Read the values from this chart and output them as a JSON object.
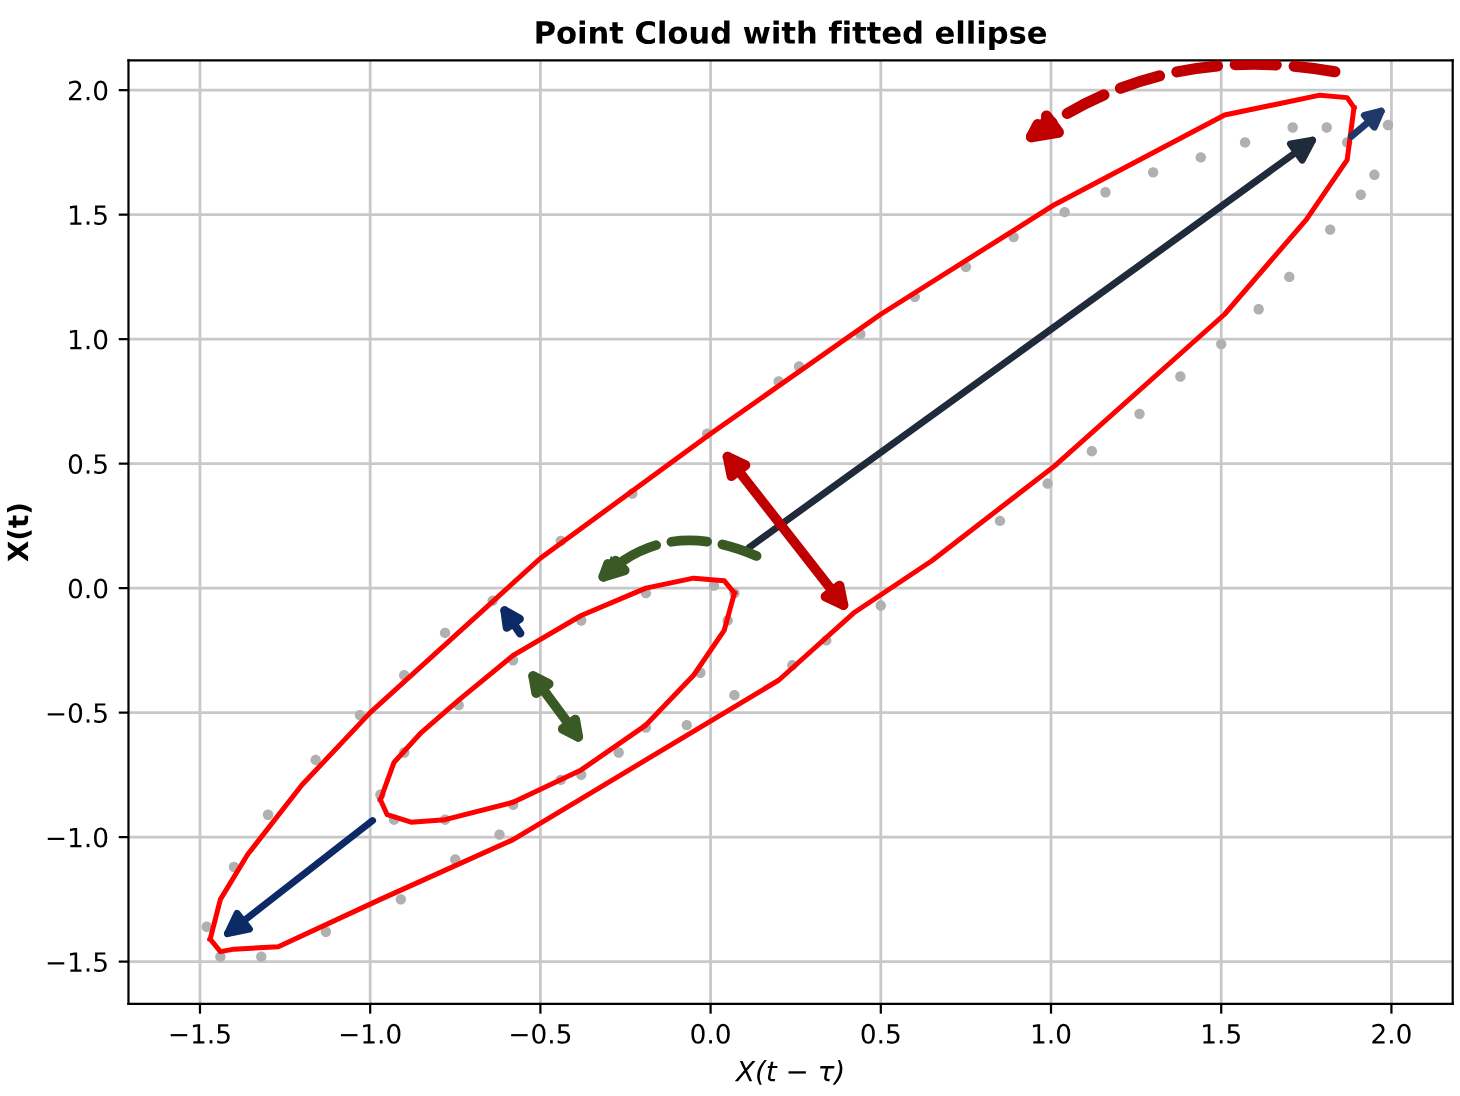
{
  "chart_data": {
    "type": "scatter",
    "title": "Point Cloud with fitted ellipse",
    "xlabel": "X(t − τ)",
    "ylabel": "X(t)",
    "xlim": [
      -1.71,
      2.18
    ],
    "ylim": [
      -1.67,
      2.12
    ],
    "xticks": [
      {
        "value": -1.5,
        "label": "−1.5"
      },
      {
        "value": -1.0,
        "label": "−1.0"
      },
      {
        "value": -0.5,
        "label": "−0.5"
      },
      {
        "value": 0.0,
        "label": "0.0"
      },
      {
        "value": 0.5,
        "label": "0.5"
      },
      {
        "value": 1.0,
        "label": "1.0"
      },
      {
        "value": 1.5,
        "label": "1.5"
      },
      {
        "value": 2.0,
        "label": "2.0"
      }
    ],
    "yticks": [
      {
        "value": -1.5,
        "label": "−1.5"
      },
      {
        "value": -1.0,
        "label": "−1.0"
      },
      {
        "value": -0.5,
        "label": "−0.5"
      },
      {
        "value": 0.0,
        "label": "0.0"
      },
      {
        "value": 0.5,
        "label": "0.5"
      },
      {
        "value": 1.0,
        "label": "1.0"
      },
      {
        "value": 1.5,
        "label": "1.5"
      },
      {
        "value": 2.0,
        "label": "2.0"
      }
    ],
    "grid": true,
    "series": [
      {
        "marker": "circle",
        "color": "#b0b0b0",
        "x": [
          1.99,
          1.95,
          1.91,
          1.82,
          1.7,
          1.61,
          1.5,
          1.38,
          1.26,
          1.12,
          0.99,
          0.85,
          0.5,
          0.34,
          0.24,
          0.07,
          -0.07,
          -0.27,
          -0.44,
          -0.62,
          -0.75,
          -0.91,
          -1.13,
          -1.32,
          -1.44,
          -1.48,
          -1.4,
          -1.3,
          -1.16,
          -1.03,
          -0.9,
          -0.78,
          -0.64,
          -0.44,
          -0.23,
          -0.01,
          0.2,
          0.26,
          0.44,
          0.6,
          0.75,
          0.89,
          1.04,
          1.16,
          1.3,
          1.44,
          1.57,
          1.71,
          1.81,
          1.87,
          0.01,
          -0.19,
          -0.38,
          -0.58,
          -0.74,
          -0.9,
          -0.97,
          -0.93,
          -0.78,
          -0.58,
          -0.38,
          -0.19,
          -0.03,
          0.05,
          0.07
        ],
        "values": [
          1.86,
          1.66,
          1.58,
          1.44,
          1.25,
          1.12,
          0.98,
          0.85,
          0.7,
          0.55,
          0.42,
          0.27,
          -0.07,
          -0.21,
          -0.31,
          -0.43,
          -0.55,
          -0.66,
          -0.77,
          -0.99,
          -1.09,
          -1.25,
          -1.38,
          -1.48,
          -1.48,
          -1.36,
          -1.12,
          -0.91,
          -0.69,
          -0.51,
          -0.35,
          -0.18,
          -0.05,
          0.19,
          0.38,
          0.62,
          0.83,
          0.89,
          1.02,
          1.17,
          1.29,
          1.41,
          1.51,
          1.59,
          1.67,
          1.73,
          1.79,
          1.85,
          1.85,
          1.79,
          0.01,
          -0.02,
          -0.13,
          -0.29,
          -0.47,
          -0.66,
          -0.83,
          -0.93,
          -0.93,
          -0.87,
          -0.75,
          -0.56,
          -0.34,
          -0.13,
          -0.02
        ]
      },
      {
        "type": "line",
        "color": "#ff0000",
        "x": [
          -1.47,
          -1.44,
          -1.36,
          -1.2,
          -1.0,
          -0.5,
          0.0,
          0.5,
          1.01,
          1.51,
          1.79,
          1.87,
          1.89
        ],
        "values": [
          -1.41,
          -1.25,
          -1.07,
          -0.79,
          -0.5,
          0.12,
          0.62,
          1.1,
          1.54,
          1.9,
          1.98,
          1.97,
          1.93
        ]
      },
      {
        "type": "line",
        "color": "#ff0000",
        "x": [
          -1.47,
          -1.44,
          -1.4,
          -1.27,
          -0.97,
          -0.58,
          -0.19,
          0.2,
          0.42,
          0.65,
          1.01,
          1.51,
          1.75,
          1.87,
          1.89
        ],
        "values": [
          -1.41,
          -1.46,
          -1.45,
          -1.44,
          -1.25,
          -1.01,
          -0.69,
          -0.37,
          -0.1,
          0.11,
          0.49,
          1.1,
          1.48,
          1.72,
          1.93
        ]
      },
      {
        "type": "line",
        "color": "#ff0000",
        "x": [
          -0.97,
          -0.93,
          -0.85,
          -0.74,
          -0.58,
          -0.38,
          -0.19,
          -0.05,
          0.04,
          0.07
        ],
        "values": [
          -0.85,
          -0.7,
          -0.58,
          -0.45,
          -0.27,
          -0.11,
          0.0,
          0.04,
          0.03,
          -0.02
        ]
      },
      {
        "type": "line",
        "color": "#ff0000",
        "x": [
          -0.97,
          -0.95,
          -0.88,
          -0.78,
          -0.58,
          -0.38,
          -0.19,
          -0.05,
          0.04,
          0.07
        ],
        "values": [
          -0.85,
          -0.91,
          -0.94,
          -0.93,
          -0.86,
          -0.73,
          -0.55,
          -0.35,
          -0.17,
          -0.02
        ]
      }
    ]
  }
}
